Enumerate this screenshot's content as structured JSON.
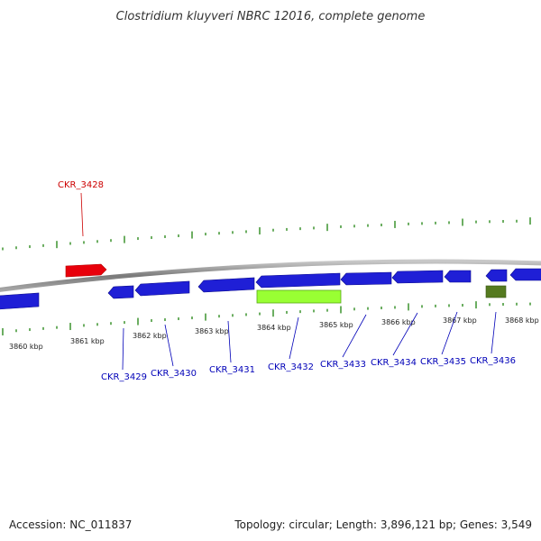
{
  "title": "Clostridium kluyveri NBRC 12016, complete genome",
  "scale_labels": [
    "3860 kbp",
    "3861 kbp",
    "3862 kbp",
    "3863 kbp",
    "3864 kbp",
    "3865 kbp",
    "3866 kbp",
    "3867 kbp",
    "3868 kbp"
  ],
  "genes": [
    {
      "label": "CKR_3428",
      "strand": "+",
      "color": "#e8000b"
    },
    {
      "label": "CKR_3429",
      "strand": "-",
      "color": "#1f1fd6"
    },
    {
      "label": "CKR_3430",
      "strand": "-",
      "color": "#1f1fd6"
    },
    {
      "label": "CKR_3431",
      "strand": "-",
      "color": "#1f1fd6"
    },
    {
      "label": "CKR_3432",
      "strand": "-",
      "color": "#1f1fd6"
    },
    {
      "label": "CKR_3433",
      "strand": "-",
      "color": "#1f1fd6"
    },
    {
      "label": "CKR_3434",
      "strand": "-",
      "color": "#1f1fd6"
    },
    {
      "label": "CKR_3435",
      "strand": "-",
      "color": "#1f1fd6"
    },
    {
      "label": "CKR_3436",
      "strand": "-",
      "color": "#1f1fd6"
    }
  ],
  "colors": {
    "forward_gene": "#e8000b",
    "reverse_gene": "#1f1fd6",
    "highlight_feature": "#99ff33",
    "olive_feature": "#557a1f",
    "tick": "#2e8b1e",
    "backbone": "#888888",
    "forward_label": "#cc0000",
    "reverse_label": "#0000b8"
  },
  "footer": {
    "accession": "Accession: NC_011837",
    "summary": "Topology: circular; Length: 3,896,121 bp; Genes: 3,549"
  }
}
